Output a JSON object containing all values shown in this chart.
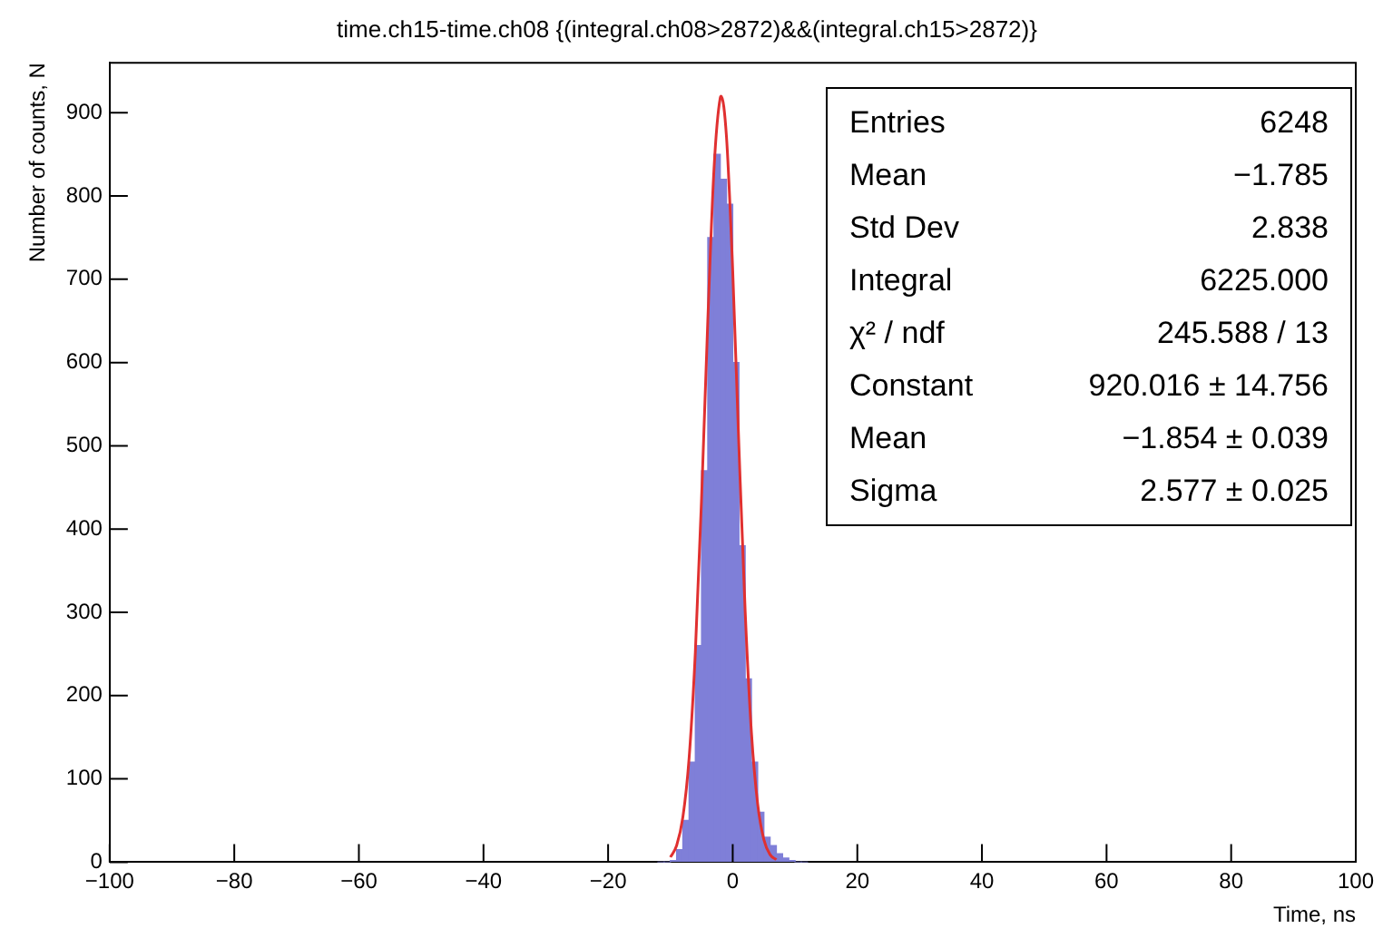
{
  "chart_data": {
    "type": "histogram",
    "title": "time.ch15-time.ch08 {(integral.ch08>2872)&&(integral.ch15>2872)}",
    "xlabel": "Time, ns",
    "ylabel": "Number of counts, N",
    "bins": [
      -12,
      -11,
      -10,
      -9,
      -8,
      -7,
      -6,
      -5,
      -4,
      -3,
      -2,
      -1,
      0,
      1,
      2,
      3,
      4,
      5,
      6,
      7,
      8,
      9,
      10,
      11,
      12
    ],
    "values": [
      0,
      0,
      2,
      15,
      50,
      120,
      260,
      470,
      750,
      850,
      820,
      790,
      600,
      380,
      220,
      120,
      60,
      30,
      20,
      10,
      5,
      2,
      0,
      0
    ],
    "color": "#7f7fd8",
    "series": [
      {
        "type": "line",
        "color": "#e03030",
        "x": [
          -10,
          -9,
          -8,
          -7,
          -6,
          -5,
          -4,
          -3,
          -2,
          -1.854,
          -1,
          0,
          1,
          2,
          3,
          4,
          5,
          6,
          7
        ],
        "values": [
          6,
          20,
          54,
          125,
          252,
          437,
          650,
          833,
          918,
          920,
          871,
          710,
          498,
          301,
          156,
          70,
          27,
          9,
          3
        ]
      }
    ],
    "xlim": [
      -100,
      100
    ],
    "xticks": [
      -100,
      -80,
      -60,
      -40,
      -20,
      0,
      20,
      40,
      60,
      80,
      100
    ],
    "ylim": [
      0,
      960
    ],
    "yticks": [
      0,
      100,
      200,
      300,
      400,
      500,
      600,
      700,
      800,
      900
    ],
    "grid": false,
    "legend": false,
    "annotations": [
      "Entries",
      "6248",
      "Mean",
      "−1.785",
      "Std Dev",
      "2.838",
      "Integral",
      "6225.000",
      "χ² / ndf",
      "245.588 / 13",
      "Constant",
      "920.016 ± 14.756",
      "Mean",
      "−1.854 ± 0.039",
      "Sigma",
      "2.577 ± 0.025"
    ]
  }
}
